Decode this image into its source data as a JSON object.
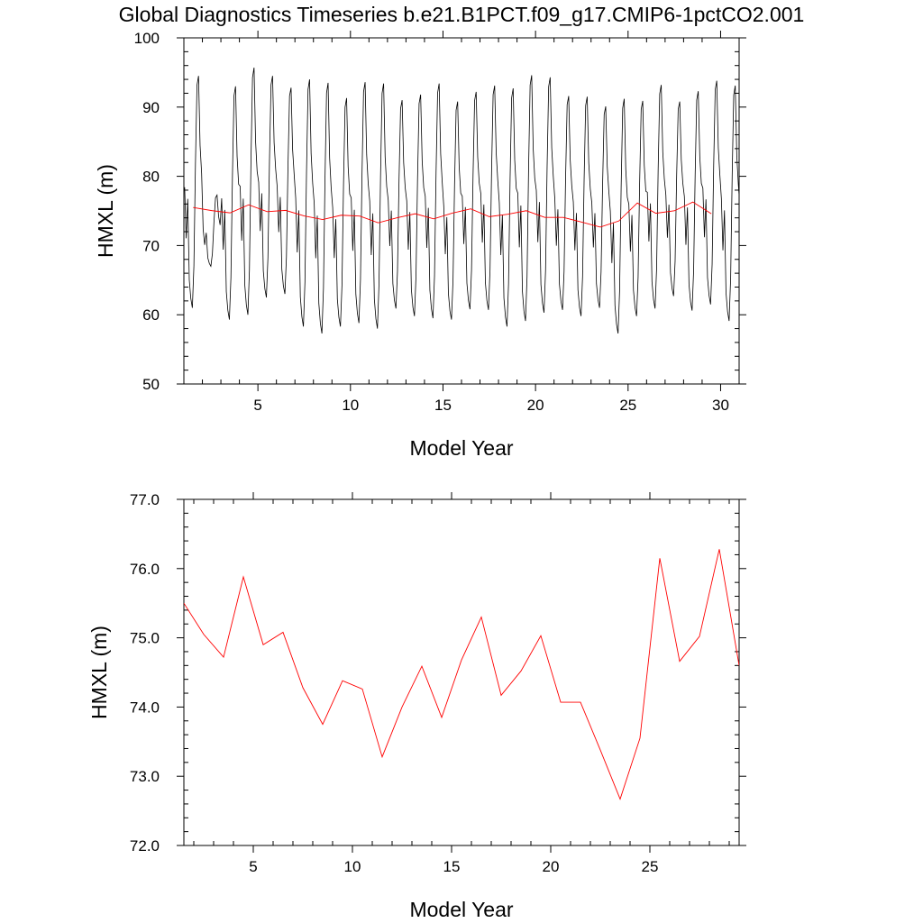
{
  "title": "Global Diagnostics Timeseries b.e21.B1PCT.f09_g17.CMIP6-1pctCO2.001",
  "chart_data": [
    {
      "type": "line",
      "xlabel": "Model Year",
      "ylabel": "HMXL (m)",
      "xlim": [
        1,
        31
      ],
      "ylim": [
        50,
        100
      ],
      "xticks": [
        5,
        10,
        15,
        20,
        25,
        30
      ],
      "yticks": [
        50,
        60,
        70,
        80,
        90,
        100
      ],
      "ytick_labels": [
        "50",
        "60",
        "70",
        "80",
        "90",
        "100"
      ],
      "monthly_max": [
        94.5,
        77.3,
        93,
        95.7,
        94.5,
        92.8,
        94,
        93.5,
        91.3,
        93.6,
        93.4,
        91,
        91.8,
        93.4,
        90.8,
        92.2,
        93.1,
        92.7,
        94.6,
        94.3,
        91.6,
        91.5,
        90.1,
        91.2,
        90.9,
        93.2,
        90.8,
        92.3,
        93.8,
        93.1,
        90
      ],
      "monthly_min": [
        61,
        67,
        59.3,
        60,
        62.5,
        63,
        58.3,
        57.3,
        58.3,
        58.8,
        58,
        60.9,
        59.8,
        59.5,
        59.3,
        60.8,
        60.7,
        58.3,
        59.1,
        60.3,
        60.7,
        59.8,
        61,
        57.3,
        59.8,
        60.9,
        62.7,
        60.6,
        61.5,
        59.1,
        60
      ],
      "series": [
        {
          "color": "#ff0000",
          "x": [
            1.5,
            2.5,
            3.5,
            4.5,
            5.5,
            6.5,
            7.5,
            8.5,
            9.5,
            10.5,
            11.5,
            12.5,
            13.5,
            14.5,
            15.5,
            16.5,
            17.5,
            18.5,
            19.5,
            20.5,
            21.5,
            22.5,
            23.5,
            24.5,
            25.5,
            26.5,
            27.5,
            28.5,
            29.5
          ],
          "values": [
            75.5,
            75.05,
            74.72,
            75.88,
            74.9,
            75.08,
            74.28,
            73.75,
            74.38,
            74.26,
            73.28,
            74.0,
            74.59,
            73.85,
            74.68,
            75.3,
            74.17,
            74.52,
            75.03,
            74.07,
            74.07,
            73.38,
            72.67,
            73.55,
            76.15,
            74.66,
            75.02,
            76.28,
            74.6
          ]
        },
        {
          "color": "#000000"
        }
      ]
    },
    {
      "type": "line",
      "xlabel": "Model Year",
      "ylabel": "HMXL (m)",
      "xlim": [
        1.5,
        29.5
      ],
      "ylim": [
        72,
        77
      ],
      "xticks": [
        5,
        10,
        15,
        20,
        25
      ],
      "yticks": [
        72,
        73,
        74,
        75,
        76,
        77
      ],
      "ytick_labels": [
        "72.0",
        "73.0",
        "74.0",
        "75.0",
        "76.0",
        "77.0"
      ],
      "series": [
        {
          "color": "#ff0000",
          "x": [
            1.5,
            2.5,
            3.5,
            4.5,
            5.5,
            6.5,
            7.5,
            8.5,
            9.5,
            10.5,
            11.5,
            12.5,
            13.5,
            14.5,
            15.5,
            16.5,
            17.5,
            18.5,
            19.5,
            20.5,
            21.5,
            22.5,
            23.5,
            24.5,
            25.5,
            26.5,
            27.5,
            28.5,
            29.5
          ],
          "values": [
            75.5,
            75.05,
            74.72,
            75.88,
            74.9,
            75.08,
            74.28,
            73.75,
            74.38,
            74.26,
            73.28,
            74.0,
            74.59,
            73.85,
            74.68,
            75.3,
            74.17,
            74.52,
            75.03,
            74.07,
            74.07,
            73.38,
            72.67,
            73.55,
            76.15,
            74.66,
            75.02,
            76.28,
            74.6
          ]
        }
      ]
    }
  ]
}
